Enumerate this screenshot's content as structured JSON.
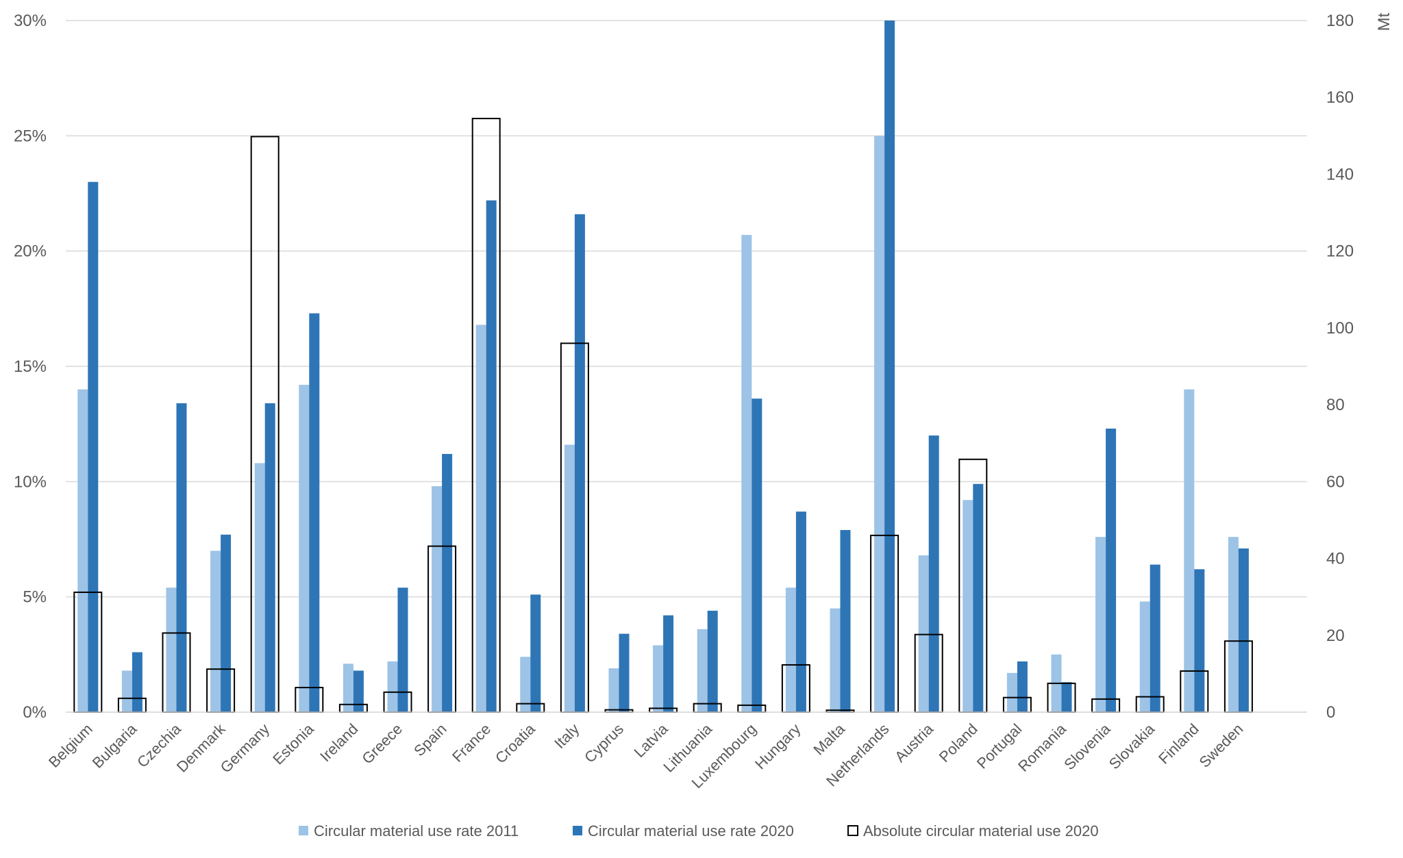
{
  "chart_data": {
    "type": "bar",
    "title": "",
    "xlabel": "",
    "ylabel": "",
    "y2label": "Mt",
    "ylim": [
      0,
      30
    ],
    "y2lim": [
      0,
      180
    ],
    "yticks": [
      "0%",
      "5%",
      "10%",
      "15%",
      "20%",
      "25%",
      "30%"
    ],
    "yticks_values": [
      0,
      5,
      10,
      15,
      20,
      25,
      30
    ],
    "y2ticks": [
      "0",
      "20",
      "40",
      "60",
      "80",
      "100",
      "120",
      "140",
      "160",
      "180"
    ],
    "y2ticks_values": [
      0,
      20,
      40,
      60,
      80,
      100,
      120,
      140,
      160,
      180
    ],
    "grid": true,
    "legend_position": "bottom",
    "categories": [
      "Belgium",
      "Bulgaria",
      "Czechia",
      "Denmark",
      "Germany",
      "Estonia",
      "Ireland",
      "Greece",
      "Spain",
      "France",
      "Croatia",
      "Italy",
      "Cyprus",
      "Latvia",
      "Lithuania",
      "Luxembourg",
      "Hungary",
      "Malta",
      "Netherlands",
      "Austria",
      "Poland",
      "Portugal",
      "Romania",
      "Slovenia",
      "Slovakia",
      "Finland",
      "Sweden"
    ],
    "series": [
      {
        "name": "Circular material use rate 2011",
        "axis": "left",
        "color": "#9dc3e6",
        "values": [
          14.0,
          1.8,
          5.4,
          7.0,
          10.8,
          14.2,
          2.1,
          2.2,
          9.8,
          16.8,
          2.4,
          11.6,
          1.9,
          2.9,
          3.6,
          20.7,
          5.4,
          4.5,
          25.0,
          6.8,
          9.2,
          1.7,
          2.5,
          7.6,
          4.8,
          14.0,
          7.6
        ]
      },
      {
        "name": "Circular material use rate 2020",
        "axis": "left",
        "color": "#2e75b6",
        "values": [
          23.0,
          2.6,
          13.4,
          7.7,
          13.4,
          17.3,
          1.8,
          5.4,
          11.2,
          22.2,
          5.1,
          21.6,
          3.4,
          4.2,
          4.4,
          13.6,
          8.7,
          7.9,
          30.0,
          12.0,
          9.9,
          2.2,
          1.3,
          12.3,
          6.4,
          6.2,
          7.1
        ]
      },
      {
        "name": "Absolute circular material use 2020",
        "axis": "right",
        "color": "#000000",
        "style": "outline",
        "values": [
          31.2,
          3.6,
          20.6,
          11.2,
          149.8,
          6.4,
          2.0,
          5.2,
          43.2,
          154.5,
          2.2,
          96.0,
          0.6,
          1.0,
          2.2,
          1.8,
          12.3,
          0.5,
          46.0,
          20.2,
          65.8,
          3.8,
          7.5,
          3.4,
          4.0,
          10.7,
          18.5
        ]
      }
    ]
  }
}
